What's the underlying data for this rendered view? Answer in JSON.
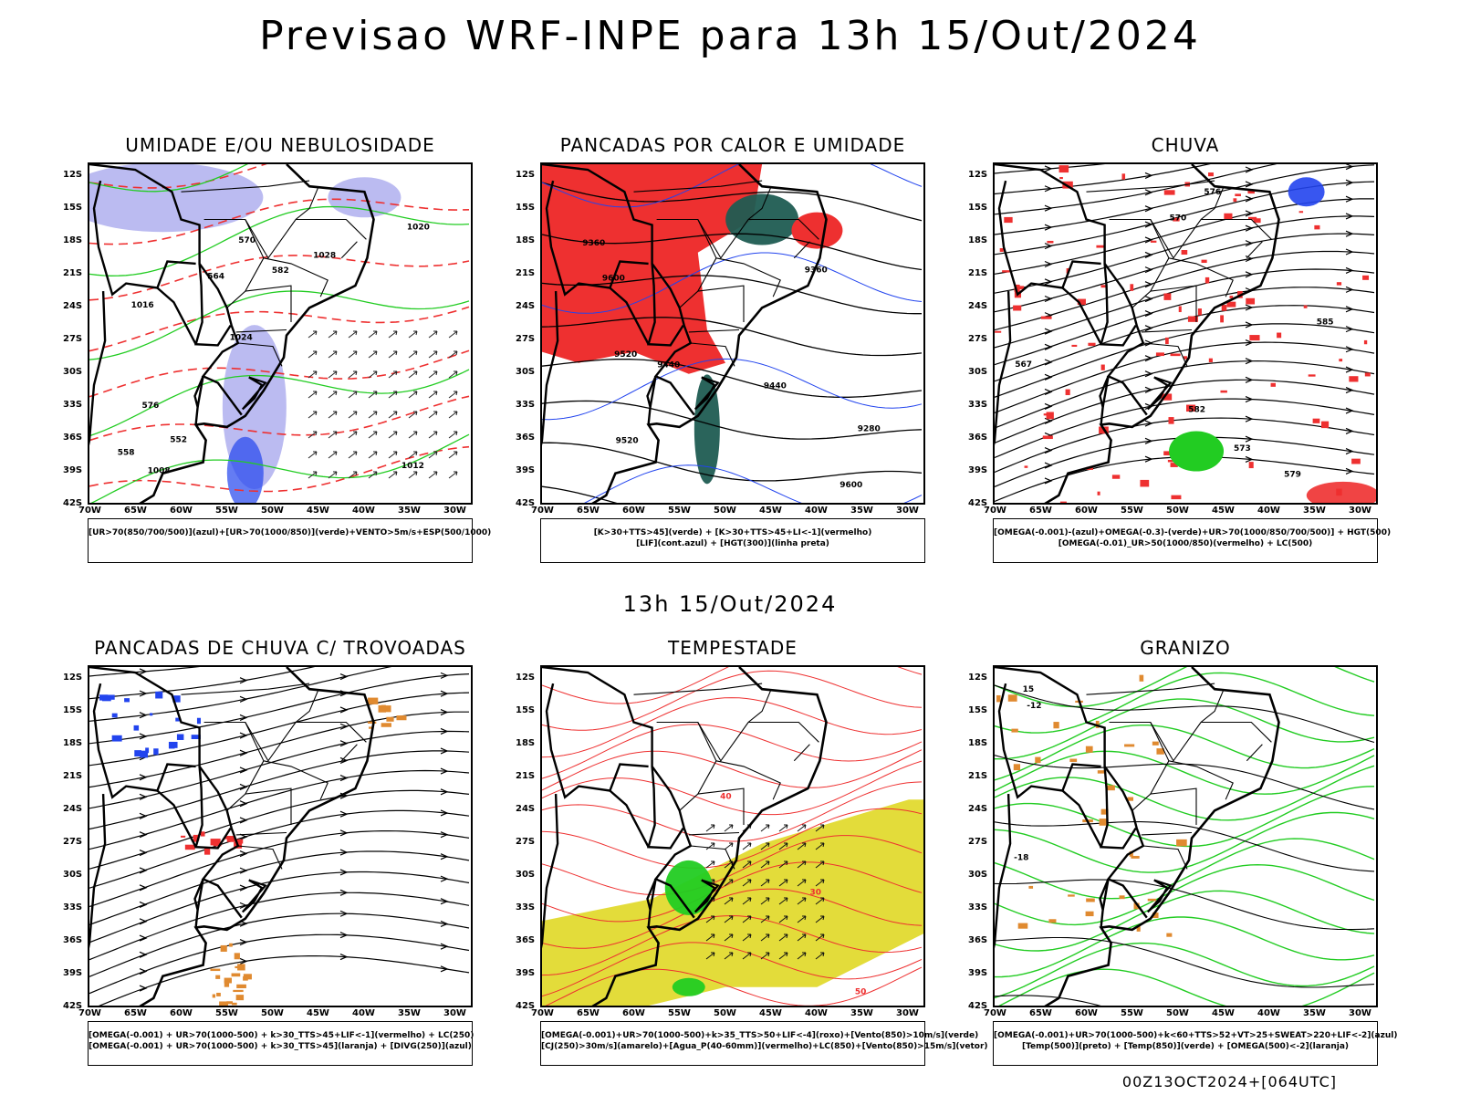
{
  "main_title": "Previsao WRF-INPE  para 13h 15/Out/2024",
  "mid_title": "13h 15/Out/2024",
  "stamp": "00Z13OCT2024+[064UTC]",
  "lat_labels": [
    "12S",
    "15S",
    "18S",
    "21S",
    "24S",
    "27S",
    "30S",
    "33S",
    "36S",
    "39S",
    "42S"
  ],
  "lon_labels": [
    "70W",
    "65W",
    "60W",
    "55W",
    "50W",
    "45W",
    "40W",
    "35W",
    "30W"
  ],
  "colors": {
    "map": "#000000",
    "red": "#ee3030",
    "green": "#22cc22",
    "blue": "#2244ee",
    "lavender": "#aaaaee",
    "teal": "#1f5c52",
    "yellow": "#e3dc3a",
    "orange": "#e08a30"
  },
  "panels": [
    {
      "title": "UMIDADE E/OU NEBULOSIDADE",
      "legend": [
        "[UR>70(850/700/500)](azul)+[UR>70(1000/850)](verde)+VENTO>5m/s+ESP(500/1000)"
      ],
      "contour_labels": [
        "1012",
        "1016",
        "1020",
        "1024",
        "1028",
        "1008",
        "570",
        "582",
        "576",
        "564",
        "558",
        "552"
      ]
    },
    {
      "title": "PANCADAS POR CALOR E UMIDADE",
      "legend": [
        "[K>30+TTS>45](verde) + [K>30+TTS>45+LI<-1](vermelho)",
        "[LIF](cont.azul) + [HGT(300)](linha preta)"
      ],
      "contour_labels": [
        "9600",
        "9520",
        "9440",
        "9360",
        "9280",
        "9600",
        "9520",
        "9440",
        "9360"
      ]
    },
    {
      "title": "CHUVA",
      "legend": [
        "[OMEGA(-0.001)-(azul)+OMEGA(-0.3)-(verde)+UR>70(1000/850/700/500)] + HGT(500)",
        "[OMEGA(-0.01)_UR>50(1000/850)(vermelho) + LC(500)"
      ],
      "contour_labels": [
        "585",
        "582",
        "579",
        "576",
        "573",
        "570",
        "567"
      ]
    },
    {
      "title": "PANCADAS DE CHUVA C/ TROVOADAS",
      "legend": [
        "[OMEGA(-0.001) + UR>70(1000-500) + k>30_TTS>45+LIF<-1](vermelho) + LC(250)",
        "[OMEGA(-0.001) + UR>70(1000-500) + k>30_TTS>45](laranja) + [DIVG(250)](azul)"
      ],
      "contour_labels": []
    },
    {
      "title": "TEMPESTADE",
      "legend": [
        "[OMEGA(-0.001)+UR>70(1000-500)+k>35_TTS>50+LIF<-4](roxo)+[Vento(850)>10m/s](verde)",
        "[CJ(250)>30m/s](amarelo)+[Agua_P(40-60mm)](vermelho)+LC(850)+[Vento(850)>15m/s](vetor)"
      ],
      "contour_labels": [
        "40",
        "50",
        "30"
      ]
    },
    {
      "title": "GRANIZO",
      "legend": [
        "[OMEGA(-0.001)+UR>70(1000-500)+k<60+TTS>52+VT>25+SWEAT>220+LIF<-2](azul)",
        "[Temp(500)](preto) + [Temp(850)](verde) + [OMEGA(500)<-2](laranja)"
      ],
      "contour_labels": [
        "-12",
        "15",
        "-18"
      ]
    }
  ]
}
